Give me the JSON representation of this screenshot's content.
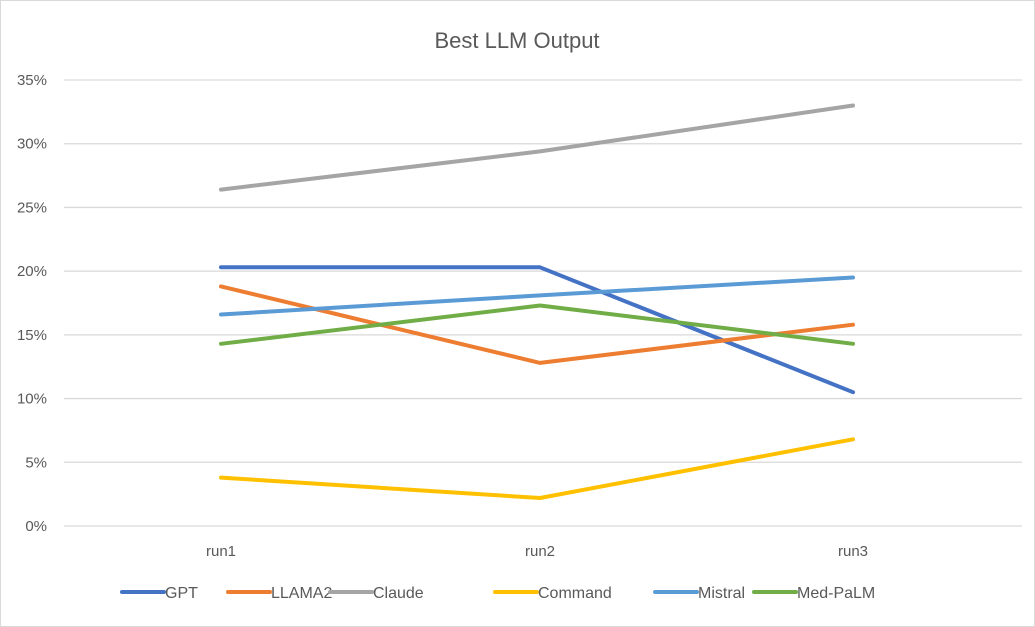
{
  "chart_data": {
    "type": "line",
    "title": "Best LLM Output",
    "xlabel": "",
    "ylabel": "",
    "categories": [
      "run1",
      "run2",
      "run3"
    ],
    "ylim": [
      0,
      35
    ],
    "yticks": [
      "0%",
      "5%",
      "10%",
      "15%",
      "20%",
      "25%",
      "30%",
      "35%"
    ],
    "ytick_values": [
      0,
      5,
      10,
      15,
      20,
      25,
      30,
      35
    ],
    "grid": true,
    "legend_position": "bottom",
    "series": [
      {
        "name": "GPT",
        "color": "#4472C4",
        "values": [
          20.3,
          20.3,
          10.5
        ]
      },
      {
        "name": "LLAMA2",
        "color": "#ED7D31",
        "values": [
          18.8,
          12.8,
          15.8
        ]
      },
      {
        "name": "Claude",
        "color": "#A5A5A5",
        "values": [
          26.4,
          29.4,
          33.0
        ]
      },
      {
        "name": "Command",
        "color": "#FFC000",
        "values": [
          3.8,
          2.2,
          6.8
        ]
      },
      {
        "name": "Mistral",
        "color": "#5B9BD5",
        "values": [
          16.6,
          18.1,
          19.5
        ]
      },
      {
        "name": "Med-PaLM",
        "color": "#70AD47",
        "values": [
          14.3,
          17.3,
          14.3
        ]
      }
    ]
  }
}
